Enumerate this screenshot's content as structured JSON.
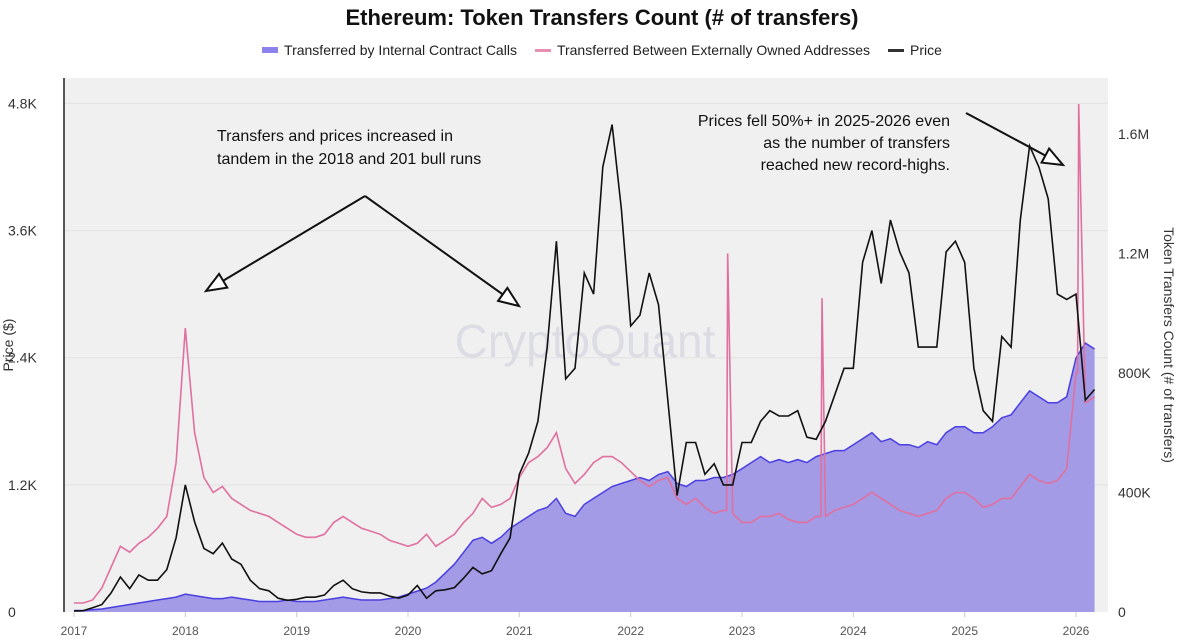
{
  "chart_data": {
    "type": "line",
    "title": "Ethereum: Token Transfers Count (# of transfers)",
    "watermark": "CryptoQuant",
    "ylabel_left": "Price ($)",
    "ylabel_right": "Token Transfers Count (# of transfers)",
    "ylim_left": [
      0,
      5040
    ],
    "ylim_right": [
      0,
      1787000
    ],
    "xlim": [
      "2016-12-01",
      "2026-04-15"
    ],
    "x_ticks": [
      "2017",
      "2018",
      "2019",
      "2020",
      "2021",
      "2022",
      "2023",
      "2024",
      "2025",
      "2026"
    ],
    "y_left_ticks": [
      {
        "v": 0,
        "label": "0"
      },
      {
        "v": 1200,
        "label": "1.2K"
      },
      {
        "v": 2400,
        "label": "2.4K"
      },
      {
        "v": 3600,
        "label": "3.6K"
      },
      {
        "v": 4800,
        "label": "4.8K"
      }
    ],
    "y_right_ticks": [
      {
        "v": 0,
        "label": "0"
      },
      {
        "v": 400000,
        "label": "400K"
      },
      {
        "v": 800000,
        "label": "800K"
      },
      {
        "v": 1200000,
        "label": "1.2M"
      },
      {
        "v": 1600000,
        "label": "1.6M"
      }
    ],
    "grid": true,
    "legend_position": "top",
    "colors": {
      "internal_fill": "#a39be6",
      "internal_line": "#4a3fe0",
      "eoa": "#e0709f",
      "price": "#111111",
      "plot_bg": "#f0f0f0"
    },
    "series": [
      {
        "name": "Transferred by Internal Contract Calls",
        "axis": "right",
        "kind": "area",
        "unit_multiplier": 1000,
        "values": [
          5,
          5,
          8,
          10,
          15,
          20,
          25,
          30,
          35,
          40,
          45,
          50,
          60,
          55,
          50,
          45,
          45,
          50,
          45,
          40,
          35,
          35,
          35,
          40,
          35,
          35,
          35,
          40,
          45,
          50,
          45,
          40,
          40,
          40,
          45,
          50,
          60,
          70,
          80,
          100,
          130,
          160,
          200,
          240,
          250,
          230,
          250,
          280,
          300,
          320,
          340,
          350,
          380,
          330,
          320,
          360,
          380,
          400,
          420,
          430,
          440,
          450,
          440,
          460,
          470,
          430,
          420,
          440,
          440,
          450,
          450,
          460,
          480,
          500,
          520,
          500,
          510,
          500,
          510,
          500,
          520,
          530,
          540,
          540,
          560,
          580,
          600,
          570,
          580,
          560,
          560,
          550,
          570,
          560,
          600,
          620,
          620,
          600,
          600,
          620,
          650,
          660,
          700,
          740,
          720,
          700,
          700,
          720,
          850,
          900,
          880
        ]
      },
      {
        "name": "Transferred Between Externally Owned Addresses",
        "axis": "right",
        "kind": "line",
        "unit_multiplier": 1000,
        "values": [
          30,
          30,
          40,
          80,
          150,
          220,
          200,
          230,
          250,
          280,
          320,
          500,
          950,
          600,
          450,
          400,
          420,
          380,
          360,
          340,
          330,
          320,
          300,
          280,
          260,
          250,
          250,
          260,
          300,
          320,
          300,
          280,
          270,
          260,
          240,
          230,
          220,
          230,
          260,
          220,
          240,
          260,
          300,
          330,
          380,
          350,
          360,
          380,
          450,
          500,
          520,
          550,
          600,
          480,
          430,
          460,
          500,
          520,
          520,
          500,
          470,
          440,
          420,
          440,
          450,
          380,
          360,
          380,
          350,
          330,
          340,
          330,
          300,
          300,
          320,
          320,
          330,
          310,
          300,
          300,
          320,
          320,
          340,
          350,
          360,
          380,
          400,
          380,
          360,
          340,
          330,
          320,
          330,
          340,
          380,
          400,
          400,
          380,
          350,
          360,
          380,
          380,
          420,
          460,
          440,
          430,
          440,
          480,
          800,
          700,
          720
        ],
        "spikes": [
          [
            "2022-11-15",
            1200
          ],
          [
            "2023-09-20",
            1050
          ],
          [
            "2026-01-10",
            1700
          ]
        ]
      },
      {
        "name": "Price",
        "axis": "left",
        "kind": "line",
        "unit_multiplier": 1,
        "values": [
          10,
          12,
          40,
          70,
          180,
          330,
          220,
          350,
          300,
          300,
          400,
          700,
          1200,
          850,
          600,
          550,
          650,
          500,
          450,
          300,
          220,
          200,
          130,
          110,
          120,
          140,
          140,
          160,
          250,
          300,
          220,
          190,
          180,
          180,
          150,
          130,
          160,
          250,
          130,
          200,
          210,
          230,
          320,
          420,
          360,
          390,
          550,
          700,
          1300,
          1500,
          1800,
          2500,
          3500,
          2200,
          2300,
          3200,
          3000,
          4200,
          4600,
          3800,
          2700,
          2800,
          3200,
          2900,
          2000,
          1100,
          1600,
          1600,
          1300,
          1400,
          1200,
          1200,
          1600,
          1600,
          1800,
          1900,
          1850,
          1850,
          1900,
          1650,
          1630,
          1800,
          2050,
          2300,
          2300,
          3300,
          3600,
          3100,
          3700,
          3400,
          3200,
          2500,
          2500,
          2500,
          3400,
          3500,
          3300,
          2300,
          1900,
          1800,
          2600,
          2500,
          3700,
          4400,
          4200,
          3900,
          3000,
          2950,
          3000,
          2000,
          2100
        ]
      }
    ],
    "series_start": "2017-01",
    "annotations": [
      {
        "lines": [
          "Transfers and prices increased in",
          "tandem in the 2018 and 201 bull runs"
        ]
      },
      {
        "lines": [
          "Prices fell 50%+ in 2025-2026 even",
          "as the number of transfers",
          "reached new record-highs."
        ]
      }
    ]
  }
}
